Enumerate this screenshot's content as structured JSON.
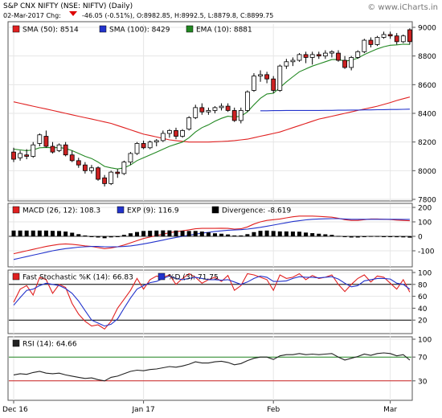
{
  "header": {
    "title": "S&P CNX NIFTY (NSE: NIFTV) (Daily)",
    "date_label": "02-Mar-2017 Chg:",
    "change_text": "-46.05 (-0.51%), O:8982.85, H:8992.5, L:8879.8, C:8899.75",
    "watermark": "© www.iCharts.in"
  },
  "colors": {
    "up_candle": "#ffffff",
    "down_candle": "#cc2222",
    "sma50": "#e02020",
    "sma100": "#2233cc",
    "ema10": "#228822",
    "macd": "#e02020",
    "exp9": "#2233cc",
    "stoch_k": "#e02020",
    "stoch_d": "#2233cc",
    "rsi": "#222222",
    "grid": "#e6e6e6",
    "border": "#555555"
  },
  "x_axis": {
    "labels": [
      {
        "text": "Dec 16",
        "index": 0
      },
      {
        "text": "Jan 17",
        "index": 20
      },
      {
        "text": "Feb",
        "index": 40
      },
      {
        "text": "Mar",
        "index": 58
      }
    ]
  },
  "chart_data": [
    {
      "type": "candlestick",
      "panel": "price",
      "ylim": [
        7800,
        9000
      ],
      "yticks": [
        7800,
        8000,
        8200,
        8400,
        8600,
        8800,
        9000
      ],
      "legend": [
        {
          "label": "SMA (50): 8514",
          "color": "#e02020"
        },
        {
          "label": "SMA (100): 8429",
          "color": "#2233cc"
        },
        {
          "label": "EMA (10): 8881",
          "color": "#228822"
        }
      ],
      "candles": [
        {
          "o": 8130,
          "h": 8160,
          "l": 8060,
          "c": 8080
        },
        {
          "o": 8090,
          "h": 8140,
          "l": 8070,
          "c": 8120
        },
        {
          "o": 8110,
          "h": 8150,
          "l": 8080,
          "c": 8100
        },
        {
          "o": 8100,
          "h": 8200,
          "l": 8090,
          "c": 8180
        },
        {
          "o": 8190,
          "h": 8260,
          "l": 8170,
          "c": 8250
        },
        {
          "o": 8240,
          "h": 8280,
          "l": 8160,
          "c": 8170
        },
        {
          "o": 8170,
          "h": 8200,
          "l": 8120,
          "c": 8130
        },
        {
          "o": 8140,
          "h": 8190,
          "l": 8130,
          "c": 8180
        },
        {
          "o": 8180,
          "h": 8200,
          "l": 8100,
          "c": 8110
        },
        {
          "o": 8110,
          "h": 8140,
          "l": 8060,
          "c": 8070
        },
        {
          "o": 8070,
          "h": 8090,
          "l": 8020,
          "c": 8040
        },
        {
          "o": 8040,
          "h": 8060,
          "l": 7980,
          "c": 8000
        },
        {
          "o": 8000,
          "h": 8040,
          "l": 7980,
          "c": 8020
        },
        {
          "o": 8020,
          "h": 8030,
          "l": 7930,
          "c": 7940
        },
        {
          "o": 7950,
          "h": 7970,
          "l": 7890,
          "c": 7910
        },
        {
          "o": 7910,
          "h": 8000,
          "l": 7900,
          "c": 7990
        },
        {
          "o": 7990,
          "h": 8010,
          "l": 7950,
          "c": 7980
        },
        {
          "o": 7980,
          "h": 8070,
          "l": 7970,
          "c": 8060
        },
        {
          "o": 8060,
          "h": 8130,
          "l": 8040,
          "c": 8120
        },
        {
          "o": 8120,
          "h": 8200,
          "l": 8110,
          "c": 8190
        },
        {
          "o": 8190,
          "h": 8210,
          "l": 8150,
          "c": 8160
        },
        {
          "o": 8160,
          "h": 8210,
          "l": 8150,
          "c": 8200
        },
        {
          "o": 8200,
          "h": 8220,
          "l": 8170,
          "c": 8210
        },
        {
          "o": 8210,
          "h": 8280,
          "l": 8200,
          "c": 8260
        },
        {
          "o": 8260,
          "h": 8290,
          "l": 8230,
          "c": 8280
        },
        {
          "o": 8280,
          "h": 8300,
          "l": 8220,
          "c": 8240
        },
        {
          "o": 8240,
          "h": 8290,
          "l": 8230,
          "c": 8280
        },
        {
          "o": 8290,
          "h": 8380,
          "l": 8280,
          "c": 8370
        },
        {
          "o": 8370,
          "h": 8460,
          "l": 8360,
          "c": 8440
        },
        {
          "o": 8440,
          "h": 8470,
          "l": 8390,
          "c": 8410
        },
        {
          "o": 8410,
          "h": 8440,
          "l": 8390,
          "c": 8420
        },
        {
          "o": 8420,
          "h": 8450,
          "l": 8400,
          "c": 8440
        },
        {
          "o": 8440,
          "h": 8470,
          "l": 8420,
          "c": 8450
        },
        {
          "o": 8450,
          "h": 8470,
          "l": 8410,
          "c": 8420
        },
        {
          "o": 8420,
          "h": 8440,
          "l": 8340,
          "c": 8350
        },
        {
          "o": 8350,
          "h": 8440,
          "l": 8330,
          "c": 8420
        },
        {
          "o": 8420,
          "h": 8560,
          "l": 8410,
          "c": 8550
        },
        {
          "o": 8560,
          "h": 8680,
          "l": 8550,
          "c": 8660
        },
        {
          "o": 8660,
          "h": 8700,
          "l": 8620,
          "c": 8670
        },
        {
          "o": 8670,
          "h": 8690,
          "l": 8610,
          "c": 8640
        },
        {
          "o": 8640,
          "h": 8660,
          "l": 8540,
          "c": 8560
        },
        {
          "o": 8560,
          "h": 8740,
          "l": 8550,
          "c": 8730
        },
        {
          "o": 8730,
          "h": 8780,
          "l": 8710,
          "c": 8760
        },
        {
          "o": 8760,
          "h": 8790,
          "l": 8730,
          "c": 8770
        },
        {
          "o": 8770,
          "h": 8820,
          "l": 8760,
          "c": 8810
        },
        {
          "o": 8810,
          "h": 8830,
          "l": 8750,
          "c": 8790
        },
        {
          "o": 8790,
          "h": 8830,
          "l": 8740,
          "c": 8810
        },
        {
          "o": 8810,
          "h": 8830,
          "l": 8780,
          "c": 8800
        },
        {
          "o": 8800,
          "h": 8840,
          "l": 8780,
          "c": 8820
        },
        {
          "o": 8820,
          "h": 8840,
          "l": 8790,
          "c": 8830
        },
        {
          "o": 8820,
          "h": 8840,
          "l": 8760,
          "c": 8770
        },
        {
          "o": 8770,
          "h": 8800,
          "l": 8710,
          "c": 8720
        },
        {
          "o": 8720,
          "h": 8800,
          "l": 8700,
          "c": 8790
        },
        {
          "o": 8790,
          "h": 8840,
          "l": 8780,
          "c": 8830
        },
        {
          "o": 8830,
          "h": 8920,
          "l": 8820,
          "c": 8910
        },
        {
          "o": 8910,
          "h": 8930,
          "l": 8860,
          "c": 8880
        },
        {
          "o": 8880,
          "h": 8940,
          "l": 8870,
          "c": 8930
        },
        {
          "o": 8930,
          "h": 8970,
          "l": 8920,
          "c": 8950
        },
        {
          "o": 8950,
          "h": 8970,
          "l": 8920,
          "c": 8940
        },
        {
          "o": 8940,
          "h": 8960,
          "l": 8880,
          "c": 8900
        },
        {
          "o": 8900,
          "h": 8950,
          "l": 8890,
          "c": 8940
        },
        {
          "o": 8983,
          "h": 8993,
          "l": 8880,
          "c": 8900
        }
      ],
      "sma50": [
        8480,
        8470,
        8460,
        8450,
        8440,
        8430,
        8420,
        8410,
        8400,
        8390,
        8380,
        8370,
        8360,
        8350,
        8340,
        8330,
        8315,
        8300,
        8285,
        8270,
        8255,
        8245,
        8235,
        8225,
        8215,
        8210,
        8205,
        8200,
        8200,
        8200,
        8200,
        8202,
        8204,
        8206,
        8210,
        8215,
        8220,
        8230,
        8240,
        8250,
        8260,
        8270,
        8285,
        8300,
        8315,
        8330,
        8345,
        8360,
        8370,
        8380,
        8390,
        8400,
        8410,
        8420,
        8430,
        8440,
        8450,
        8462,
        8475,
        8490,
        8502,
        8514
      ],
      "sma100_start": 38,
      "sma100": [
        8418,
        8418,
        8419,
        8419,
        8420,
        8420,
        8420,
        8420,
        8420,
        8420,
        8421,
        8421,
        8422,
        8422,
        8423,
        8423,
        8424,
        8424,
        8425,
        8426,
        8427,
        8427,
        8428,
        8429
      ],
      "ema10": [
        8150,
        8145,
        8140,
        8145,
        8160,
        8162,
        8160,
        8162,
        8155,
        8140,
        8120,
        8100,
        8085,
        8060,
        8030,
        8020,
        8012,
        8020,
        8040,
        8070,
        8090,
        8110,
        8130,
        8150,
        8170,
        8185,
        8200,
        8230,
        8270,
        8300,
        8320,
        8345,
        8365,
        8380,
        8375,
        8380,
        8410,
        8460,
        8505,
        8535,
        8540,
        8580,
        8620,
        8655,
        8690,
        8710,
        8730,
        8745,
        8760,
        8775,
        8775,
        8765,
        8770,
        8785,
        8810,
        8830,
        8850,
        8865,
        8875,
        8878,
        8882,
        8881
      ]
    },
    {
      "type": "line",
      "panel": "macd",
      "ylim": [
        -200,
        200
      ],
      "yticks": [
        -100,
        0,
        100,
        200
      ],
      "legend": [
        {
          "label": "MACD (26, 12): 108.3",
          "color": "#e02020"
        },
        {
          "label": "EXP (9): 116.9",
          "color": "#2233cc"
        },
        {
          "label": "Divergence: -8.619",
          "color": "#000000"
        }
      ],
      "macd": [
        -120,
        -110,
        -100,
        -90,
        -80,
        -70,
        -62,
        -55,
        -52,
        -55,
        -60,
        -66,
        -70,
        -78,
        -85,
        -80,
        -72,
        -60,
        -45,
        -30,
        -15,
        -5,
        5,
        15,
        25,
        32,
        38,
        45,
        52,
        55,
        55,
        55,
        56,
        55,
        50,
        52,
        65,
        85,
        100,
        110,
        115,
        120,
        128,
        135,
        140,
        140,
        140,
        138,
        135,
        132,
        125,
        115,
        110,
        110,
        115,
        120,
        120,
        118,
        116,
        112,
        110,
        108
      ],
      "exp9": [
        -160,
        -150,
        -140,
        -130,
        -120,
        -110,
        -100,
        -92,
        -85,
        -80,
        -75,
        -72,
        -70,
        -70,
        -72,
        -73,
        -72,
        -70,
        -66,
        -60,
        -52,
        -44,
        -35,
        -26,
        -16,
        -8,
        0,
        8,
        15,
        22,
        28,
        34,
        38,
        42,
        44,
        46,
        50,
        56,
        62,
        70,
        78,
        86,
        94,
        102,
        108,
        114,
        118,
        120,
        121,
        122,
        122,
        120,
        118,
        118,
        118,
        118,
        118,
        118,
        118,
        118,
        117,
        117
      ],
      "divergence": [
        40,
        40,
        40,
        40,
        40,
        40,
        38,
        37,
        33,
        25,
        15,
        6,
        0,
        -8,
        -13,
        -7,
        0,
        10,
        21,
        30,
        37,
        39,
        40,
        41,
        41,
        40,
        38,
        37,
        37,
        33,
        27,
        21,
        18,
        13,
        6,
        6,
        15,
        29,
        38,
        40,
        37,
        34,
        34,
        33,
        32,
        26,
        22,
        18,
        14,
        10,
        3,
        -5,
        -8,
        -8,
        -3,
        2,
        2,
        0,
        -2,
        -6,
        -7,
        -9
      ]
    },
    {
      "type": "line",
      "panel": "stochastic",
      "ylim": [
        0,
        100
      ],
      "yticks": [
        20,
        40,
        60,
        80,
        100
      ],
      "legend": [
        {
          "label": "Fast Stochastic %K (14): 66.83",
          "color": "#e02020"
        },
        {
          "label": "%D (3): 71.75",
          "color": "#2233cc"
        }
      ],
      "k": [
        50,
        72,
        78,
        62,
        92,
        88,
        65,
        80,
        75,
        48,
        30,
        18,
        10,
        12,
        5,
        18,
        40,
        55,
        70,
        90,
        72,
        88,
        94,
        92,
        96,
        80,
        90,
        98,
        92,
        82,
        88,
        92,
        85,
        95,
        70,
        78,
        98,
        96,
        92,
        88,
        70,
        96,
        90,
        92,
        98,
        88,
        95,
        90,
        92,
        96,
        80,
        68,
        80,
        90,
        96,
        84,
        94,
        92,
        82,
        72,
        88,
        67
      ],
      "d": [
        45,
        58,
        70,
        72,
        78,
        82,
        80,
        78,
        73,
        65,
        52,
        36,
        20,
        15,
        10,
        13,
        22,
        40,
        57,
        72,
        78,
        83,
        85,
        90,
        94,
        90,
        88,
        90,
        92,
        90,
        88,
        88,
        87,
        88,
        84,
        80,
        84,
        90,
        94,
        92,
        85,
        85,
        86,
        90,
        93,
        92,
        92,
        91,
        92,
        93,
        89,
        82,
        76,
        78,
        86,
        88,
        90,
        90,
        89,
        82,
        80,
        72
      ]
    },
    {
      "type": "line",
      "panel": "rsi",
      "ylim": [
        0,
        100
      ],
      "yticks": [
        30,
        70,
        100
      ],
      "legend": [
        {
          "label": "RSI (14): 64.66",
          "color": "#222222"
        }
      ],
      "rsi": [
        40,
        42,
        41,
        44,
        46,
        43,
        42,
        43,
        40,
        38,
        36,
        34,
        35,
        32,
        30,
        36,
        38,
        42,
        46,
        48,
        47,
        49,
        50,
        52,
        54,
        53,
        55,
        58,
        62,
        60,
        60,
        62,
        63,
        61,
        57,
        59,
        64,
        68,
        70,
        70,
        66,
        72,
        74,
        74,
        76,
        74,
        75,
        74,
        75,
        76,
        70,
        65,
        68,
        71,
        75,
        73,
        76,
        77,
        76,
        72,
        74,
        65
      ]
    }
  ]
}
